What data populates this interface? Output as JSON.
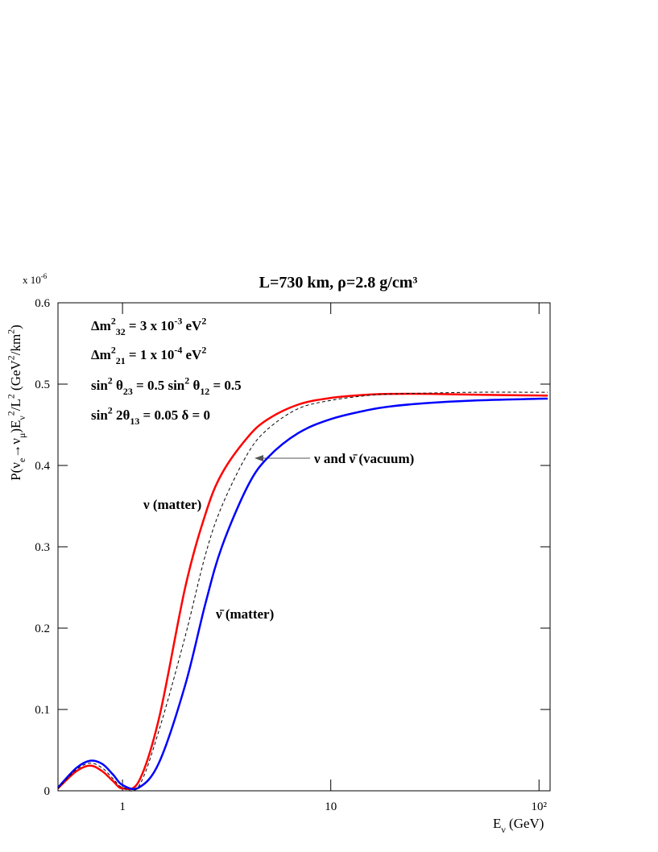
{
  "chart_data": {
    "type": "line",
    "title": "L=730 km, ρ=2.8 g/cm³",
    "y_multiplier": {
      "parts": [
        "x 10",
        "-6"
      ]
    },
    "xlabel": {
      "parts": [
        "E",
        "ν",
        " (GeV)"
      ]
    },
    "ylabel": {
      "parts": [
        "P(ν",
        "e",
        "→ν",
        "μ",
        ")E",
        "ν",
        "2",
        "/L",
        "2",
        "   (GeV",
        "2",
        "/km",
        "2",
        ")"
      ]
    },
    "log_x": true,
    "xlim": [
      0.49,
      113
    ],
    "xticks": [
      1,
      10,
      {
        "value": 100,
        "label": "10²"
      }
    ],
    "ylim": [
      0,
      0.6
    ],
    "yticks": [
      0,
      0.1,
      0.2,
      0.3,
      0.4,
      0.5,
      0.6
    ],
    "annotations": [
      {
        "parts": [
          "Δm",
          "2",
          "32",
          " = 3 x 10",
          "-3",
          " eV",
          "2"
        ]
      },
      {
        "parts": [
          "Δm",
          "2",
          "21",
          " = 1 x 10",
          "-4",
          " eV",
          "2"
        ]
      },
      {
        "parts": [
          "sin",
          "2",
          " θ",
          "23",
          " = 0.5    sin",
          "2",
          " θ",
          "12",
          " = 0.5"
        ]
      },
      {
        "parts": [
          "sin",
          "2",
          " 2θ",
          "13",
          " = 0.05    δ = 0"
        ]
      },
      {
        "parts": [
          "ν (matter)"
        ]
      },
      {
        "parts": [
          "ν̄ (matter)"
        ]
      },
      {
        "parts": [
          "ν and ν̄ (vacuum)"
        ]
      }
    ],
    "x": [
      0.49,
      0.6,
      0.7,
      0.8,
      0.9,
      1.0,
      1.2,
      1.5,
      2,
      2.5,
      3,
      4,
      5,
      7,
      10,
      15,
      20,
      30,
      50,
      100,
      110
    ],
    "series": [
      {
        "color": "#ff0000",
        "dash": false,
        "values": [
          0.003,
          0.024,
          0.031,
          0.024,
          0.012,
          0.003,
          0.012,
          0.09,
          0.25,
          0.34,
          0.39,
          0.435,
          0.457,
          0.475,
          0.483,
          0.487,
          0.488,
          0.488,
          0.487,
          0.486,
          0.486
        ]
      },
      {
        "color": "#0000ff",
        "dash": false,
        "values": [
          0.004,
          0.028,
          0.037,
          0.033,
          0.02,
          0.007,
          0.004,
          0.035,
          0.13,
          0.23,
          0.3,
          0.375,
          0.41,
          0.44,
          0.457,
          0.468,
          0.473,
          0.477,
          0.48,
          0.482,
          0.482
        ]
      },
      {
        "color": "#000000",
        "dash": true,
        "values": [
          0.003,
          0.026,
          0.034,
          0.028,
          0.015,
          0.004,
          0.006,
          0.075,
          0.19,
          0.29,
          0.35,
          0.415,
          0.445,
          0.47,
          0.48,
          0.486,
          0.488,
          0.489,
          0.49,
          0.49,
          0.49
        ]
      }
    ]
  }
}
